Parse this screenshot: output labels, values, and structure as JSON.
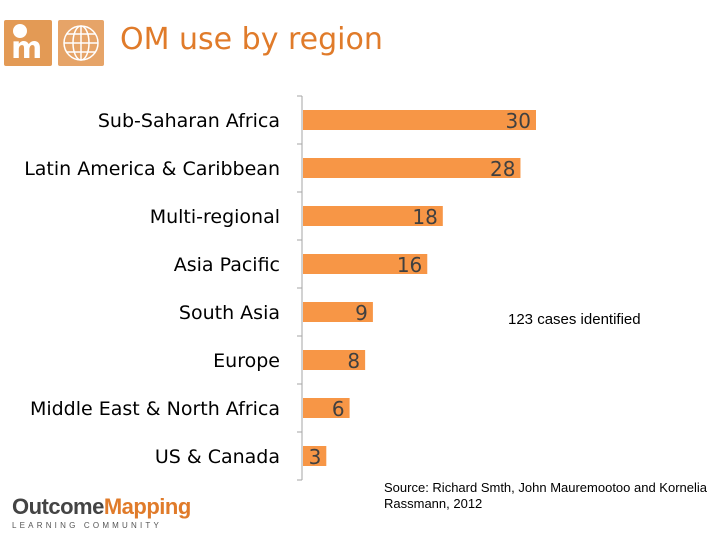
{
  "header": {
    "title": "OM use by region"
  },
  "footer": {
    "brand_part1": "Outcome",
    "brand_part2": "Mapping",
    "brand_sub": "LEARNING COMMUNITY"
  },
  "colors": {
    "bar": "#f79646",
    "accent": "#e07b2a",
    "axis": "#a6a6a6"
  },
  "chart_data": {
    "type": "bar",
    "orientation": "horizontal",
    "categories": [
      "Sub-Saharan Africa",
      "Latin America & Caribbean",
      "Multi-regional",
      "Asia Pacific",
      "South Asia",
      "Europe",
      "Middle East & North Africa",
      "US & Canada"
    ],
    "values": [
      30,
      28,
      18,
      16,
      9,
      8,
      6,
      3
    ],
    "data_labels": true,
    "xlim": [
      0,
      30
    ],
    "annotation": "123 cases  identified",
    "source": "Source: Richard Smth, John Mauremootoo and Kornelia Rassmann, 2012"
  }
}
